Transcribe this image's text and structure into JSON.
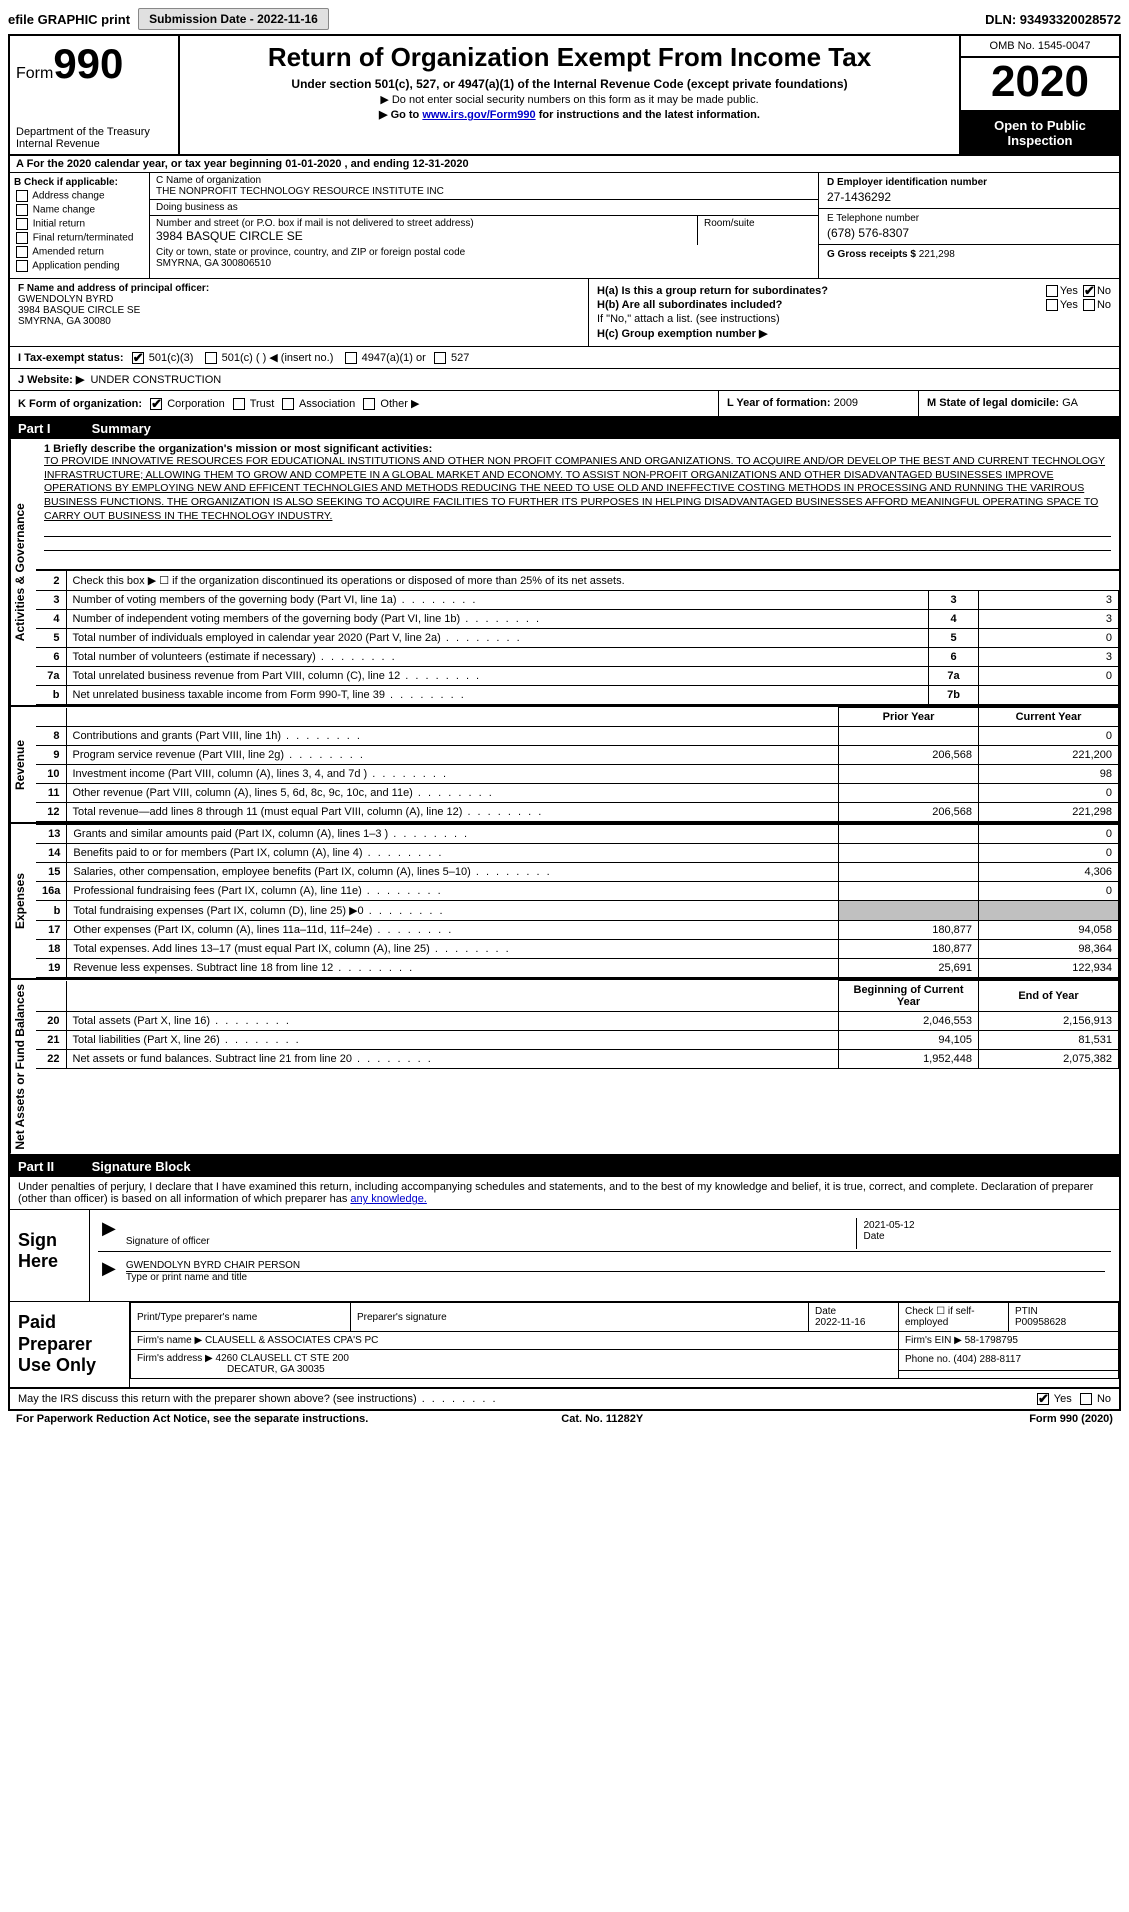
{
  "topbar": {
    "efile": "efile GRAPHIC print",
    "submission_label": "Submission Date - 2022-11-16",
    "dln": "DLN: 93493320028572"
  },
  "header": {
    "form_prefix": "Form",
    "form_number": "990",
    "dept": "Department of the Treasury",
    "irs": "Internal Revenue",
    "title": "Return of Organization Exempt From Income Tax",
    "sub": "Under section 501(c), 527, or 4947(a)(1) of the Internal Revenue Code (except private foundations)",
    "note1": "▶ Do not enter social security numbers on this form as it may be made public.",
    "note2_pre": "▶ Go to ",
    "note2_link": "www.irs.gov/Form990",
    "note2_post": " for instructions and the latest information.",
    "omb": "OMB No. 1545-0047",
    "year": "2020",
    "open": "Open to Public Inspection"
  },
  "line_a": "A   For the 2020 calendar year, or tax year beginning 01-01-2020    , and ending 12-31-2020",
  "col_b": {
    "header": "B Check if applicable:",
    "opts": [
      "Address change",
      "Name change",
      "Initial return",
      "Final return/terminated",
      "Amended return",
      "Application pending"
    ]
  },
  "col_c": {
    "name_label": "C Name of organization",
    "name": "THE NONPROFIT TECHNOLOGY RESOURCE INSTITUTE INC",
    "dba_label": "Doing business as",
    "dba": "",
    "addr_label": "Number and street (or P.O. box if mail is not delivered to street address)",
    "addr": "3984 BASQUE CIRCLE SE",
    "room_label": "Room/suite",
    "city_label": "City or town, state or province, country, and ZIP or foreign postal code",
    "city": "SMYRNA, GA  300806510"
  },
  "col_de": {
    "d_label": "D Employer identification number",
    "d_val": "27-1436292",
    "e_label": "E Telephone number",
    "e_val": "(678) 576-8307",
    "g_label": "G Gross receipts $",
    "g_val": "221,298"
  },
  "col_f": {
    "label": "F  Name and address of principal officer:",
    "name": "GWENDOLYN BYRD",
    "addr1": "3984 BASQUE CIRCLE SE",
    "addr2": "SMYRNA, GA  30080"
  },
  "col_h": {
    "ha": "H(a)  Is this a group return for subordinates?",
    "hb": "H(b)  Are all subordinates included?",
    "hb_note": "If \"No,\" attach a list. (see instructions)",
    "hc": "H(c)  Group exemption number ▶",
    "yes": "Yes",
    "no": "No"
  },
  "row_i": {
    "label": "I   Tax-exempt status:",
    "o1": "501(c)(3)",
    "o2": "501(c) (   ) ◀ (insert no.)",
    "o3": "4947(a)(1) or",
    "o4": "527"
  },
  "row_j": {
    "label": "J   Website: ▶",
    "val": "UNDER CONSTRUCTION"
  },
  "row_k": {
    "label": "K Form of organization:",
    "o1": "Corporation",
    "o2": "Trust",
    "o3": "Association",
    "o4": "Other ▶"
  },
  "row_l": {
    "label": "L Year of formation:",
    "val": "2009"
  },
  "row_m": {
    "label": "M State of legal domicile:",
    "val": "GA"
  },
  "part1": {
    "label": "Part I",
    "title": "Summary"
  },
  "side_labels": {
    "activities": "Activities & Governance",
    "revenue": "Revenue",
    "expenses": "Expenses",
    "net": "Net Assets or Fund Balances"
  },
  "mission": {
    "label": "1   Briefly describe the organization's mission or most significant activities:",
    "text": "TO PROVIDE INNOVATIVE RESOURCES FOR EDUCATIONAL INSTITUTIONS AND OTHER NON PROFIT COMPANIES AND ORGANIZATIONS. TO ACQUIRE AND/OR DEVELOP THE BEST AND CURRENT TECHNOLOGY INFRASTRUCTURE; ALLOWING THEM TO GROW AND COMPETE IN A GLOBAL MARKET AND ECONOMY. TO ASSIST NON-PROFIT ORGANIZATIONS AND OTHER DISADVANTAGED BUSINESSES IMPROVE OPERATIONS BY EMPLOYING NEW AND EFFICENT TECHNOLGIES AND METHODS REDUCING THE NEED TO USE OLD AND INEFFECTIVE COSTING METHODS IN PROCESSING AND RUNNING THE VARIROUS BUSINESS FUNCTIONS. THE ORGANIZATION IS ALSO SEEKING TO ACQUIRE FACILITIES TO FURTHER ITS PURPOSES IN HELPING DISADVANTAGED BUSINESSES AFFORD MEANINGFUL OPERATING SPACE TO CARRY OUT BUSINESS IN THE TECHNOLOGY INDUSTRY."
  },
  "lines_activities": [
    {
      "n": "2",
      "d": "Check this box ▶ ☐ if the organization discontinued its operations or disposed of more than 25% of its net assets.",
      "box": "",
      "v": ""
    },
    {
      "n": "3",
      "d": "Number of voting members of the governing body (Part VI, line 1a)",
      "box": "3",
      "v": "3"
    },
    {
      "n": "4",
      "d": "Number of independent voting members of the governing body (Part VI, line 1b)",
      "box": "4",
      "v": "3"
    },
    {
      "n": "5",
      "d": "Total number of individuals employed in calendar year 2020 (Part V, line 2a)",
      "box": "5",
      "v": "0"
    },
    {
      "n": "6",
      "d": "Total number of volunteers (estimate if necessary)",
      "box": "6",
      "v": "3"
    },
    {
      "n": "7a",
      "d": "Total unrelated business revenue from Part VIII, column (C), line 12",
      "box": "7a",
      "v": "0"
    },
    {
      "n": "b",
      "d": "Net unrelated business taxable income from Form 990-T, line 39",
      "box": "7b",
      "v": ""
    }
  ],
  "year_headers": {
    "prior": "Prior Year",
    "current": "Current Year"
  },
  "lines_revenue": [
    {
      "n": "8",
      "d": "Contributions and grants (Part VIII, line 1h)",
      "p": "",
      "c": "0"
    },
    {
      "n": "9",
      "d": "Program service revenue (Part VIII, line 2g)",
      "p": "206,568",
      "c": "221,200"
    },
    {
      "n": "10",
      "d": "Investment income (Part VIII, column (A), lines 3, 4, and 7d )",
      "p": "",
      "c": "98"
    },
    {
      "n": "11",
      "d": "Other revenue (Part VIII, column (A), lines 5, 6d, 8c, 9c, 10c, and 11e)",
      "p": "",
      "c": "0"
    },
    {
      "n": "12",
      "d": "Total revenue—add lines 8 through 11 (must equal Part VIII, column (A), line 12)",
      "p": "206,568",
      "c": "221,298"
    }
  ],
  "lines_expenses": [
    {
      "n": "13",
      "d": "Grants and similar amounts paid (Part IX, column (A), lines 1–3 )",
      "p": "",
      "c": "0"
    },
    {
      "n": "14",
      "d": "Benefits paid to or for members (Part IX, column (A), line 4)",
      "p": "",
      "c": "0"
    },
    {
      "n": "15",
      "d": "Salaries, other compensation, employee benefits (Part IX, column (A), lines 5–10)",
      "p": "",
      "c": "4,306"
    },
    {
      "n": "16a",
      "d": "Professional fundraising fees (Part IX, column (A), line 11e)",
      "p": "",
      "c": "0"
    },
    {
      "n": "b",
      "d": "Total fundraising expenses (Part IX, column (D), line 25) ▶0",
      "p": "shade",
      "c": "shade"
    },
    {
      "n": "17",
      "d": "Other expenses (Part IX, column (A), lines 11a–11d, 11f–24e)",
      "p": "180,877",
      "c": "94,058"
    },
    {
      "n": "18",
      "d": "Total expenses. Add lines 13–17 (must equal Part IX, column (A), line 25)",
      "p": "180,877",
      "c": "98,364"
    },
    {
      "n": "19",
      "d": "Revenue less expenses. Subtract line 18 from line 12",
      "p": "25,691",
      "c": "122,934"
    }
  ],
  "net_headers": {
    "begin": "Beginning of Current Year",
    "end": "End of Year"
  },
  "lines_net": [
    {
      "n": "20",
      "d": "Total assets (Part X, line 16)",
      "p": "2,046,553",
      "c": "2,156,913"
    },
    {
      "n": "21",
      "d": "Total liabilities (Part X, line 26)",
      "p": "94,105",
      "c": "81,531"
    },
    {
      "n": "22",
      "d": "Net assets or fund balances. Subtract line 21 from line 20",
      "p": "1,952,448",
      "c": "2,075,382"
    }
  ],
  "part2": {
    "label": "Part II",
    "title": "Signature Block"
  },
  "sig_intro": "Under penalties of perjury, I declare that I have examined this return, including accompanying schedules and statements, and to the best of my knowledge and belief, it is true, correct, and complete. Declaration of preparer (other than officer) is based on all information of which preparer has ",
  "sig_intro_link": "any knowledge.",
  "sign": {
    "here": "Sign Here",
    "sig_label": "Signature of officer",
    "date_label": "Date",
    "date_val": "2021-05-12",
    "name": "GWENDOLYN BYRD  CHAIR PERSON",
    "name_label": "Type or print name and title"
  },
  "paid": {
    "title": "Paid Preparer Use Only",
    "h1": "Print/Type preparer's name",
    "h2": "Preparer's signature",
    "h3_label": "Date",
    "h3_val": "2022-11-16",
    "h4": "Check ☐ if self-employed",
    "h5_label": "PTIN",
    "h5_val": "P00958628",
    "firm_name_label": "Firm's name     ▶",
    "firm_name": "CLAUSELL & ASSOCIATES CPA'S PC",
    "firm_ein_label": "Firm's EIN ▶",
    "firm_ein": "58-1798795",
    "firm_addr_label": "Firm's address ▶",
    "firm_addr1": "4260 CLAUSELL CT STE 200",
    "firm_addr2": "DECATUR, GA  30035",
    "phone_label": "Phone no.",
    "phone": "(404) 288-8117"
  },
  "footer": {
    "q": "May the IRS discuss this return with the preparer shown above? (see instructions)",
    "yes": "Yes",
    "no": "No",
    "pra": "For Paperwork Reduction Act Notice, see the separate instructions.",
    "cat": "Cat. No. 11282Y",
    "form": "Form 990 (2020)"
  }
}
